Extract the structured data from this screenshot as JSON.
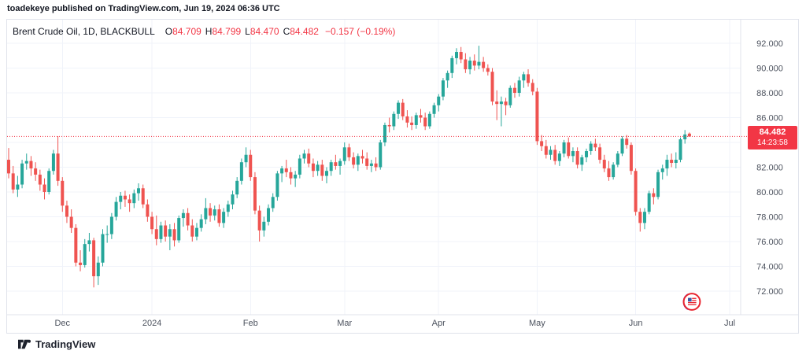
{
  "header": {
    "attribution": "toadekeye published on TradingView.com, Jun 19, 2024 06:36 UTC"
  },
  "legend": {
    "symbol": "Brent Crude Oil, 1D, BLACKBULL",
    "ohlc": [
      {
        "label": "O",
        "value": "84.709"
      },
      {
        "label": "H",
        "value": "84.799"
      },
      {
        "label": "L",
        "value": "84.470"
      },
      {
        "label": "C",
        "value": "84.482"
      }
    ],
    "change": "−0.157 (−0.19%)"
  },
  "price_scale": {
    "last_price": "84.482",
    "countdown": "14:23:58",
    "ticks": [
      {
        "value": 92,
        "label": "92.000"
      },
      {
        "value": 90,
        "label": "90.000"
      },
      {
        "value": 88,
        "label": "88.000"
      },
      {
        "value": 86,
        "label": "86.000"
      },
      {
        "value": 84,
        "label": "84.000"
      },
      {
        "value": 82,
        "label": "82.000"
      },
      {
        "value": 80,
        "label": "80.000"
      },
      {
        "value": 78,
        "label": "78.000"
      },
      {
        "value": 76,
        "label": "76.000"
      },
      {
        "value": 74,
        "label": "74.000"
      },
      {
        "value": 72,
        "label": "72.000"
      }
    ]
  },
  "time_scale": {
    "labels": [
      {
        "label": "Dec",
        "index": 12
      },
      {
        "label": "2024",
        "index": 32
      },
      {
        "label": "Feb",
        "index": 54
      },
      {
        "label": "Mar",
        "index": 75
      },
      {
        "label": "Apr",
        "index": 96
      },
      {
        "label": "May",
        "index": 118
      },
      {
        "label": "Jun",
        "index": 140
      },
      {
        "label": "Jul",
        "index": 161
      }
    ]
  },
  "watermark": {
    "brand": "TradingView"
  },
  "icons": {
    "watermark_logo": "tradingview-logo",
    "provider_logo": "blackbull-markets-logo"
  },
  "colors": {
    "up": "#26a69a",
    "down": "#ef5350",
    "accent_red": "#f23645",
    "text_dark": "#131722",
    "axis_text": "#4c525e",
    "border": "#e0e3eb",
    "grid": "#f0f3fa"
  },
  "chart_data": {
    "type": "candlestick",
    "title": "Brent Crude Oil, 1D, BLACKBULL",
    "timeframe": "1D",
    "x_range_months": [
      "Nov 2023",
      "Jul 2024"
    ],
    "ylim": [
      71.0,
      93.0
    ],
    "grid": true,
    "last_price": 84.482,
    "prev_close": 84.639,
    "change": -0.157,
    "change_pct": -0.19,
    "y_tick_step": 2.0,
    "candles": [
      [
        82.6,
        83.55,
        81.1,
        81.5
      ],
      [
        81.5,
        82.1,
        79.9,
        80.2
      ],
      [
        80.2,
        81.3,
        79.6,
        80.6
      ],
      [
        80.6,
        82.6,
        80.3,
        82.3
      ],
      [
        82.3,
        83.1,
        81.8,
        82.5
      ],
      [
        82.5,
        82.9,
        81.3,
        81.9
      ],
      [
        81.9,
        82.4,
        80.9,
        81.4
      ],
      [
        81.4,
        81.8,
        80.1,
        80.6
      ],
      [
        80.6,
        81.1,
        79.4,
        80.0
      ],
      [
        80.0,
        81.9,
        79.8,
        81.7
      ],
      [
        81.7,
        83.4,
        81.4,
        83.1
      ],
      [
        83.1,
        84.5,
        80.5,
        80.9
      ],
      [
        80.9,
        81.2,
        78.4,
        78.9
      ],
      [
        78.9,
        79.3,
        77.5,
        78.0
      ],
      [
        78.0,
        78.6,
        76.7,
        77.1
      ],
      [
        77.1,
        77.4,
        74.0,
        74.3
      ],
      [
        74.3,
        75.3,
        73.6,
        74.1
      ],
      [
        74.1,
        76.2,
        73.9,
        75.8
      ],
      [
        75.8,
        76.7,
        75.2,
        76.1
      ],
      [
        76.1,
        76.3,
        72.3,
        73.2
      ],
      [
        73.2,
        74.8,
        72.5,
        74.3
      ],
      [
        74.3,
        77.0,
        74.0,
        76.6
      ],
      [
        76.6,
        77.3,
        75.9,
        76.6
      ],
      [
        76.6,
        78.3,
        76.2,
        78.0
      ],
      [
        78.0,
        79.6,
        77.7,
        79.2
      ],
      [
        79.2,
        80.0,
        78.6,
        79.7
      ],
      [
        79.7,
        80.1,
        78.8,
        79.4
      ],
      [
        79.4,
        79.8,
        78.4,
        79.1
      ],
      [
        79.1,
        80.2,
        78.7,
        79.9
      ],
      [
        79.9,
        80.7,
        79.3,
        80.3
      ],
      [
        80.3,
        80.6,
        78.7,
        79.0
      ],
      [
        79.0,
        79.4,
        77.6,
        78.0
      ],
      [
        78.0,
        78.4,
        76.6,
        77.0
      ],
      [
        77.0,
        78.1,
        75.7,
        76.2
      ],
      [
        76.2,
        77.6,
        75.9,
        77.3
      ],
      [
        77.3,
        77.7,
        76.0,
        76.4
      ],
      [
        76.4,
        77.4,
        75.3,
        77.0
      ],
      [
        77.0,
        77.5,
        75.6,
        76.1
      ],
      [
        76.1,
        78.1,
        75.9,
        77.9
      ],
      [
        77.9,
        78.6,
        77.2,
        78.3
      ],
      [
        78.3,
        78.7,
        76.9,
        77.3
      ],
      [
        77.3,
        77.8,
        76.0,
        76.4
      ],
      [
        76.4,
        77.5,
        76.1,
        77.1
      ],
      [
        77.1,
        78.2,
        76.8,
        77.8
      ],
      [
        77.8,
        79.5,
        77.4,
        78.7
      ],
      [
        78.7,
        79.1,
        77.6,
        78.1
      ],
      [
        78.1,
        78.9,
        77.7,
        78.6
      ],
      [
        78.6,
        79.0,
        77.2,
        77.5
      ],
      [
        77.5,
        78.7,
        77.1,
        78.4
      ],
      [
        78.4,
        79.3,
        78.0,
        79.0
      ],
      [
        79.0,
        80.1,
        78.6,
        79.8
      ],
      [
        79.8,
        81.2,
        79.5,
        80.9
      ],
      [
        80.9,
        82.7,
        80.6,
        82.4
      ],
      [
        82.4,
        83.6,
        82.0,
        83.0
      ],
      [
        83.0,
        83.4,
        80.9,
        81.2
      ],
      [
        81.2,
        81.6,
        78.2,
        78.5
      ],
      [
        78.5,
        78.9,
        76.0,
        76.9
      ],
      [
        76.9,
        78.0,
        76.4,
        77.6
      ],
      [
        77.6,
        79.0,
        77.3,
        78.7
      ],
      [
        78.7,
        79.9,
        78.4,
        79.6
      ],
      [
        79.6,
        81.7,
        79.3,
        81.5
      ],
      [
        81.5,
        82.1,
        80.8,
        81.9
      ],
      [
        81.9,
        82.6,
        81.2,
        81.6
      ],
      [
        81.6,
        82.0,
        80.6,
        81.1
      ],
      [
        81.1,
        81.7,
        80.4,
        81.4
      ],
      [
        81.4,
        83.0,
        81.1,
        82.7
      ],
      [
        82.7,
        83.4,
        82.3,
        83.1
      ],
      [
        83.1,
        83.5,
        82.0,
        82.3
      ],
      [
        82.3,
        82.7,
        81.2,
        81.7
      ],
      [
        81.7,
        82.5,
        81.3,
        82.2
      ],
      [
        82.2,
        82.6,
        80.9,
        81.3
      ],
      [
        81.3,
        82.0,
        80.7,
        81.7
      ],
      [
        81.7,
        82.6,
        81.3,
        82.4
      ],
      [
        82.4,
        83.0,
        81.8,
        82.1
      ],
      [
        82.1,
        82.7,
        81.4,
        82.5
      ],
      [
        82.5,
        84.0,
        82.2,
        83.6
      ],
      [
        83.6,
        83.9,
        82.5,
        82.8
      ],
      [
        82.8,
        83.2,
        81.9,
        82.2
      ],
      [
        82.2,
        83.1,
        81.7,
        82.9
      ],
      [
        82.9,
        83.4,
        82.3,
        82.7
      ],
      [
        82.7,
        83.2,
        81.8,
        82.1
      ],
      [
        82.1,
        82.6,
        81.6,
        82.3
      ],
      [
        82.3,
        82.8,
        81.7,
        82.0
      ],
      [
        82.0,
        84.2,
        81.8,
        84.0
      ],
      [
        84.0,
        85.6,
        83.7,
        85.4
      ],
      [
        85.4,
        86.0,
        84.8,
        85.3
      ],
      [
        85.3,
        86.5,
        85.0,
        86.3
      ],
      [
        86.3,
        87.4,
        85.9,
        87.2
      ],
      [
        87.2,
        87.5,
        85.8,
        86.1
      ],
      [
        86.1,
        86.6,
        85.2,
        85.6
      ],
      [
        85.6,
        86.1,
        85.0,
        85.4
      ],
      [
        85.4,
        86.4,
        85.1,
        86.2
      ],
      [
        86.2,
        86.7,
        85.6,
        86.0
      ],
      [
        86.0,
        86.4,
        85.0,
        85.3
      ],
      [
        85.3,
        86.5,
        85.1,
        86.3
      ],
      [
        86.3,
        87.2,
        86.0,
        87.0
      ],
      [
        87.0,
        87.9,
        86.5,
        87.7
      ],
      [
        87.7,
        89.2,
        87.4,
        89.0
      ],
      [
        89.0,
        89.8,
        88.4,
        89.6
      ],
      [
        89.6,
        91.0,
        89.2,
        90.8
      ],
      [
        90.8,
        91.6,
        90.3,
        91.3
      ],
      [
        91.3,
        91.7,
        90.4,
        90.7
      ],
      [
        90.7,
        91.2,
        89.6,
        89.9
      ],
      [
        89.9,
        90.9,
        89.5,
        90.6
      ],
      [
        90.6,
        91.1,
        89.8,
        90.2
      ],
      [
        90.2,
        91.8,
        89.9,
        90.5
      ],
      [
        90.5,
        90.9,
        89.7,
        90.0
      ],
      [
        90.0,
        90.3,
        89.4,
        89.7
      ],
      [
        89.7,
        90.0,
        87.0,
        87.3
      ],
      [
        87.3,
        88.2,
        85.8,
        87.1
      ],
      [
        87.1,
        87.7,
        85.3,
        87.3
      ],
      [
        87.3,
        87.6,
        86.2,
        87.0
      ],
      [
        87.0,
        88.6,
        86.8,
        88.4
      ],
      [
        88.4,
        88.8,
        87.6,
        88.0
      ],
      [
        88.0,
        89.3,
        87.7,
        89.0
      ],
      [
        89.0,
        89.7,
        88.4,
        89.5
      ],
      [
        89.5,
        89.9,
        88.5,
        88.8
      ],
      [
        88.8,
        89.1,
        87.8,
        88.1
      ],
      [
        88.1,
        88.4,
        83.8,
        84.1
      ],
      [
        84.1,
        84.6,
        83.3,
        83.7
      ],
      [
        83.7,
        84.2,
        82.7,
        83.0
      ],
      [
        83.0,
        83.7,
        82.6,
        83.4
      ],
      [
        83.4,
        83.8,
        82.2,
        82.5
      ],
      [
        82.5,
        83.3,
        82.1,
        83.1
      ],
      [
        83.1,
        84.2,
        82.8,
        84.0
      ],
      [
        84.0,
        84.4,
        82.7,
        82.9
      ],
      [
        82.9,
        83.6,
        82.4,
        83.3
      ],
      [
        83.3,
        83.6,
        81.9,
        82.2
      ],
      [
        82.2,
        83.0,
        81.7,
        82.8
      ],
      [
        82.8,
        83.5,
        82.4,
        83.3
      ],
      [
        83.3,
        84.1,
        83.0,
        83.9
      ],
      [
        83.9,
        84.3,
        83.3,
        83.6
      ],
      [
        83.6,
        83.9,
        82.3,
        82.6
      ],
      [
        82.6,
        83.0,
        81.6,
        81.9
      ],
      [
        81.9,
        82.5,
        80.9,
        81.2
      ],
      [
        81.2,
        82.4,
        81.0,
        82.2
      ],
      [
        82.2,
        83.3,
        82.0,
        83.1
      ],
      [
        83.1,
        84.5,
        82.9,
        84.3
      ],
      [
        84.3,
        84.6,
        83.5,
        83.8
      ],
      [
        83.8,
        84.0,
        81.4,
        81.7
      ],
      [
        81.7,
        81.9,
        78.1,
        78.4
      ],
      [
        78.4,
        78.7,
        76.8,
        77.5
      ],
      [
        77.5,
        78.7,
        77.0,
        78.4
      ],
      [
        78.4,
        80.1,
        78.2,
        79.9
      ],
      [
        79.9,
        80.3,
        79.0,
        79.6
      ],
      [
        79.6,
        81.8,
        79.4,
        81.6
      ],
      [
        81.6,
        82.2,
        81.0,
        81.9
      ],
      [
        81.9,
        83.0,
        81.3,
        82.6
      ],
      [
        82.6,
        83.1,
        82.0,
        82.35
      ],
      [
        82.35,
        83.2,
        81.9,
        82.6
      ],
      [
        82.6,
        84.4,
        82.4,
        84.25
      ],
      [
        84.25,
        85.0,
        83.9,
        84.64
      ],
      [
        84.71,
        84.8,
        84.47,
        84.48
      ]
    ]
  }
}
